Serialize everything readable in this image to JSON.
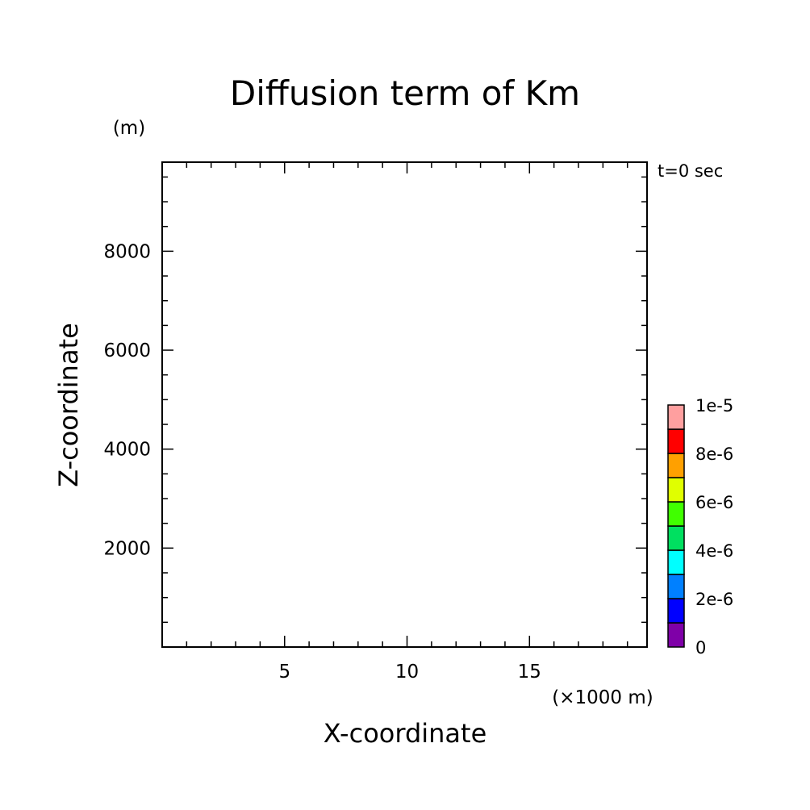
{
  "chart_data": {
    "type": "heatmap",
    "title": "Diffusion term of Km",
    "xlabel": "X-coordinate",
    "ylabel": "Z-coordinate",
    "x_unit": "(×1000 m)",
    "y_unit": "(m)",
    "time_label": "t=0 sec",
    "xlim": [
      0,
      19.8
    ],
    "ylim": [
      0,
      9800
    ],
    "x_ticks": [
      5,
      10,
      15
    ],
    "x_minor_step": 1,
    "y_ticks": [
      2000,
      4000,
      6000,
      8000
    ],
    "y_minor_step": 500,
    "grid": false,
    "values": [],
    "colorbar": {
      "levels": [
        0,
        1e-06,
        2e-06,
        3e-06,
        4e-06,
        5e-06,
        6e-06,
        7e-06,
        8e-06,
        9e-06,
        1e-05
      ],
      "labels": [
        "0",
        "2e-6",
        "4e-6",
        "6e-6",
        "8e-6",
        "1e-5"
      ],
      "label_levels": [
        0,
        2e-06,
        4e-06,
        6e-06,
        8e-06,
        1e-05
      ],
      "colors": [
        "#7f00a8",
        "#0000ff",
        "#0080ff",
        "#00ffff",
        "#00e060",
        "#40ff00",
        "#e0ff00",
        "#ffa000",
        "#ff0000",
        "#ff9f9f"
      ]
    }
  }
}
